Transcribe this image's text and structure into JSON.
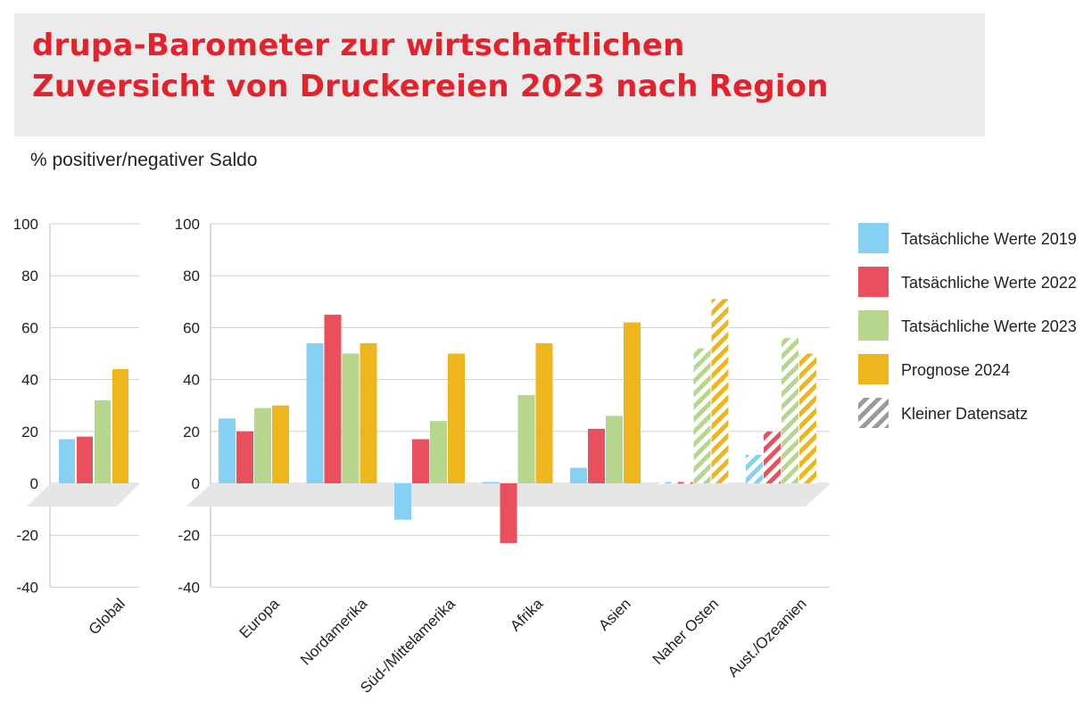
{
  "title_lines": [
    "drupa-Barometer zur wirtschaftlichen",
    "Zuversicht von Druckereien 2023 nach Region"
  ],
  "subtitle": "% positiver/negativer Saldo",
  "colors": {
    "title": "#e3222b",
    "s2019": "#86d0f4",
    "s2022": "#e8505e",
    "s2023": "#b6d68e",
    "s2024": "#ecb61c",
    "small_dataset": "#9a9a9a",
    "floor": "#e6e6e6",
    "grid": "#cfcfcf"
  },
  "chart_data": {
    "type": "bar",
    "ylim": [
      -40,
      100
    ],
    "yticks": [
      100,
      80,
      60,
      40,
      20,
      0,
      -20,
      -40
    ],
    "grid": true,
    "legend_position": "right",
    "legend": [
      {
        "label": "Tatsächliche Werte 2019",
        "color_key": "s2019",
        "hatched": false
      },
      {
        "label": "Tatsächliche Werte 2022",
        "color_key": "s2022",
        "hatched": false
      },
      {
        "label": "Tatsächliche Werte 2023",
        "color_key": "s2023",
        "hatched": false
      },
      {
        "label": "Prognose 2024",
        "color_key": "s2024",
        "hatched": false
      },
      {
        "label": "Kleiner Datensatz",
        "color_key": "small_dataset",
        "hatched": true
      }
    ],
    "series_colors": [
      "s2019",
      "s2022",
      "s2023",
      "s2024"
    ],
    "panels": [
      {
        "categories": [
          "Global"
        ],
        "series": [
          {
            "name": "Tatsächliche Werte 2019",
            "values": [
              17
            ]
          },
          {
            "name": "Tatsächliche Werte 2022",
            "values": [
              18
            ]
          },
          {
            "name": "Tatsächliche Werte 2023",
            "values": [
              32
            ]
          },
          {
            "name": "Prognose 2024",
            "values": [
              44
            ]
          }
        ],
        "small_dataset": [
          false
        ]
      },
      {
        "categories": [
          "Europa",
          "Nordamerika",
          "Süd-/Mittelamerika",
          "Afrika",
          "Asien",
          "Naher Osten",
          "Aust./Ozeanien"
        ],
        "series": [
          {
            "name": "Tatsächliche Werte 2019",
            "values": [
              25,
              54,
              -14,
              0,
              6,
              0,
              11
            ]
          },
          {
            "name": "Tatsächliche Werte 2022",
            "values": [
              20,
              65,
              17,
              -23,
              21,
              0,
              20
            ]
          },
          {
            "name": "Tatsächliche Werte 2023",
            "values": [
              29,
              50,
              24,
              34,
              26,
              52,
              56
            ]
          },
          {
            "name": "Prognose 2024",
            "values": [
              30,
              54,
              50,
              54,
              62,
              71,
              50
            ]
          }
        ],
        "small_dataset": [
          false,
          false,
          false,
          false,
          false,
          true,
          true
        ]
      }
    ]
  }
}
